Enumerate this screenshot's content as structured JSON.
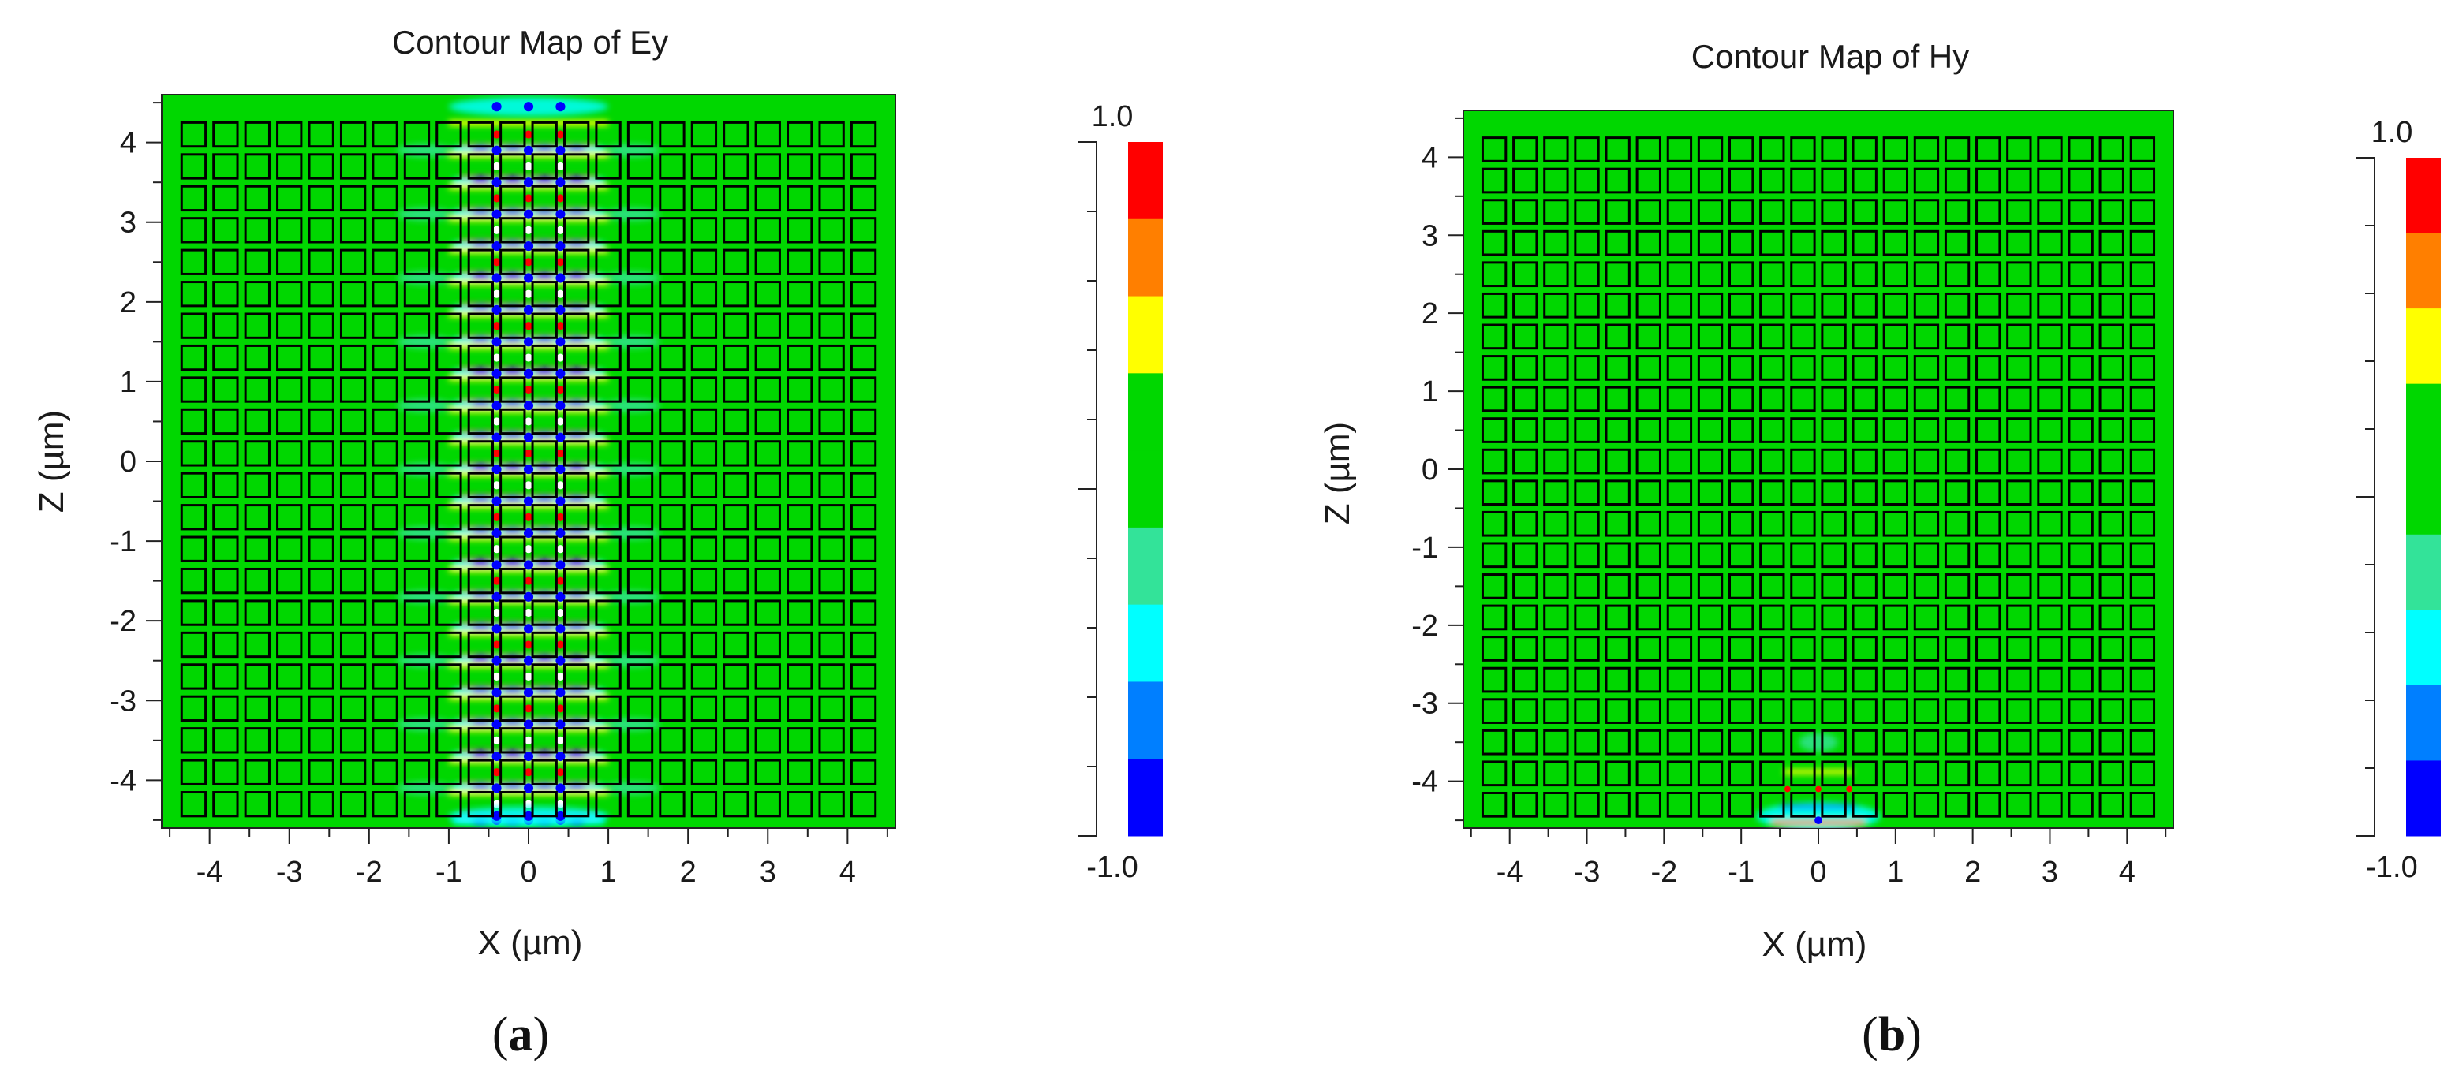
{
  "chart_data": [
    {
      "type": "heatmap",
      "panel": "(a)",
      "panel_label": "a",
      "title": "Contour Map of Ey",
      "xlabel": "X (µm)",
      "ylabel": "Z (µm)",
      "xlim": [
        -4.6,
        4.6
      ],
      "ylim": [
        -4.6,
        4.6
      ],
      "xticks": [
        -4,
        -3,
        -2,
        -1,
        0,
        1,
        2,
        3,
        4
      ],
      "yticks": [
        4,
        3,
        2,
        1,
        0,
        -1,
        -2,
        -3,
        -4
      ],
      "grid": false,
      "field_description": "field confined to central channel between x = -1 and x = 1 along full Z range",
      "colorbar": {
        "max_label": "1.0",
        "min_label": "-1.0",
        "range": [
          -1.0,
          1.0
        ],
        "colors": [
          "#ff0000",
          "#ff7f00",
          "#ffff00",
          "#00d700",
          "#00d700",
          "#33e399",
          "#00ffff",
          "#007fff",
          "#0000ff"
        ]
      }
    },
    {
      "type": "heatmap",
      "panel": "(b)",
      "panel_label": "b",
      "title": "Contour Map of Hy",
      "xlabel": "X (µm)",
      "ylabel": "Z (µm)",
      "xlim": [
        -4.6,
        4.6
      ],
      "ylim": [
        -4.6,
        4.6
      ],
      "xticks": [
        -4,
        -3,
        -2,
        -1,
        0,
        1,
        2,
        3,
        4
      ],
      "yticks": [
        4,
        3,
        2,
        1,
        0,
        -1,
        -2,
        -3,
        -4
      ],
      "grid": false,
      "field_description": "weak field localized near x = 0 at bottom edge (z ≈ -4.5)",
      "colorbar": {
        "max_label": "1.0",
        "min_label": "-1.0",
        "range": [
          -1.0,
          1.0
        ],
        "colors": [
          "#ff0000",
          "#ff7f00",
          "#ffff00",
          "#00d700",
          "#00d700",
          "#33e399",
          "#00ffff",
          "#007fff",
          "#0000ff"
        ]
      }
    }
  ],
  "colors": {
    "background_field": "#00d700",
    "rod_outline": "#000000"
  },
  "rod_lattice": {
    "columns_x": [
      -4.2,
      -3.8,
      -3.4,
      -3.0,
      -2.6,
      -2.2,
      -1.8,
      -1.4,
      -1.0,
      -0.6,
      -0.2,
      0.2,
      0.6,
      1.0,
      1.4,
      1.8,
      2.2,
      2.6,
      3.0,
      3.4,
      3.8,
      4.2
    ],
    "rows_z": [
      4.1,
      3.7,
      3.3,
      2.9,
      2.5,
      2.1,
      1.7,
      1.3,
      0.9,
      0.5,
      0.1,
      -0.3,
      -0.7,
      -1.1,
      -1.5,
      -1.9,
      -2.3,
      -2.7,
      -3.1,
      -3.5,
      -3.9,
      -4.3
    ],
    "rod_size_um": 0.3
  }
}
